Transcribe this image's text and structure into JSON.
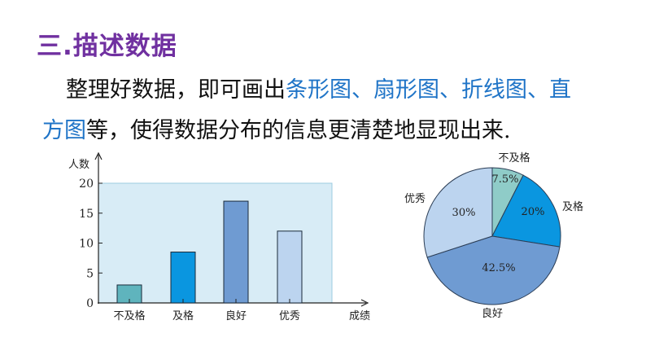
{
  "title": "三.描述数据",
  "paragraph": {
    "line1_pre": "整理好数据，即可画出",
    "line1_hl": "条形图、扇形图、折线图、直",
    "line2_hl": "方图",
    "line2_post": "等，使得数据分布的信息更清楚地显现出来."
  },
  "chart_data": [
    {
      "type": "bar",
      "ylabel": "人数",
      "xlabel": "成绩",
      "categories": [
        "不及格",
        "及格",
        "良好",
        "优秀"
      ],
      "values": [
        3,
        8.5,
        17,
        12
      ],
      "yticks": [
        "0",
        "5",
        "10",
        "15",
        "20"
      ],
      "ylim": [
        0,
        20
      ],
      "colors": [
        "#5fb4bd",
        "#0a96e0",
        "#6f9bd2",
        "#bcd4ef"
      ],
      "plot_bg": "#d8ecf6",
      "grid": false
    },
    {
      "type": "pie",
      "slices": [
        {
          "label": "不及格",
          "value": 7.5,
          "text": "7.5%",
          "color": "#8fccc8"
        },
        {
          "label": "及格",
          "value": 20,
          "text": "20%",
          "color": "#0a96e0"
        },
        {
          "label": "良好",
          "value": 42.5,
          "text": "42.5%",
          "color": "#6f9bd2"
        },
        {
          "label": "优秀",
          "value": 30,
          "text": "30%",
          "color": "#bcd4ef"
        }
      ]
    }
  ]
}
